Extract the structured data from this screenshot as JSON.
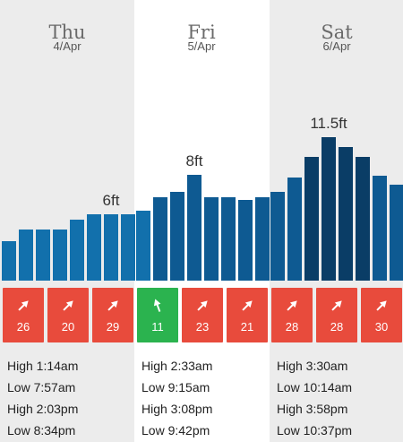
{
  "days": [
    {
      "name": "Thu",
      "date": "4/Apr",
      "peak": "6ft",
      "tides": [
        "High 1:14am",
        "Low 7:57am",
        "High 2:03pm",
        "Low 8:34pm"
      ]
    },
    {
      "name": "Fri",
      "date": "5/Apr",
      "peak": "8ft",
      "tides": [
        "High 2:33am",
        "Low 9:15am",
        "High 3:08pm",
        "Low 9:42pm"
      ]
    },
    {
      "name": "Sat",
      "date": "6/Apr",
      "peak": "11.5ft",
      "tides": [
        "High 3:30am",
        "Low 10:14am",
        "High 3:58pm",
        "Low 10:37pm"
      ]
    }
  ],
  "colors": {
    "bar_dark": "#0a3d66",
    "bar_mid": "#0e5a92",
    "bar_light": "#1270ac",
    "wind_red": "#e84b3c",
    "wind_green": "#2bb34f",
    "column_shade": "#ececec",
    "column_white": "#ffffff"
  },
  "swell_bars_ft": [
    3.6,
    4.7,
    4.7,
    4.7,
    5.6,
    6.1,
    6.1,
    6.1,
    6.4,
    7.6,
    8.1,
    9.7,
    7.6,
    7.6,
    7.4,
    7.6,
    8.1,
    9.4,
    11.3,
    13.1,
    12.2,
    11.3,
    9.6,
    8.8
  ],
  "wind": [
    {
      "speed": "26",
      "icon": "arrow-northeast-icon",
      "status": "red"
    },
    {
      "speed": "20",
      "icon": "arrow-northeast-icon",
      "status": "red"
    },
    {
      "speed": "29",
      "icon": "arrow-northeast-icon",
      "status": "red"
    },
    {
      "speed": "11",
      "icon": "arrow-north-icon",
      "status": "green"
    },
    {
      "speed": "23",
      "icon": "arrow-northeast-icon",
      "status": "red"
    },
    {
      "speed": "21",
      "icon": "arrow-northeast-icon",
      "status": "red"
    },
    {
      "speed": "28",
      "icon": "arrow-northeast-icon",
      "status": "red"
    },
    {
      "speed": "28",
      "icon": "arrow-northeast-icon",
      "status": "red"
    },
    {
      "speed": "30",
      "icon": "arrow-northeast-icon",
      "status": "red"
    }
  ]
}
